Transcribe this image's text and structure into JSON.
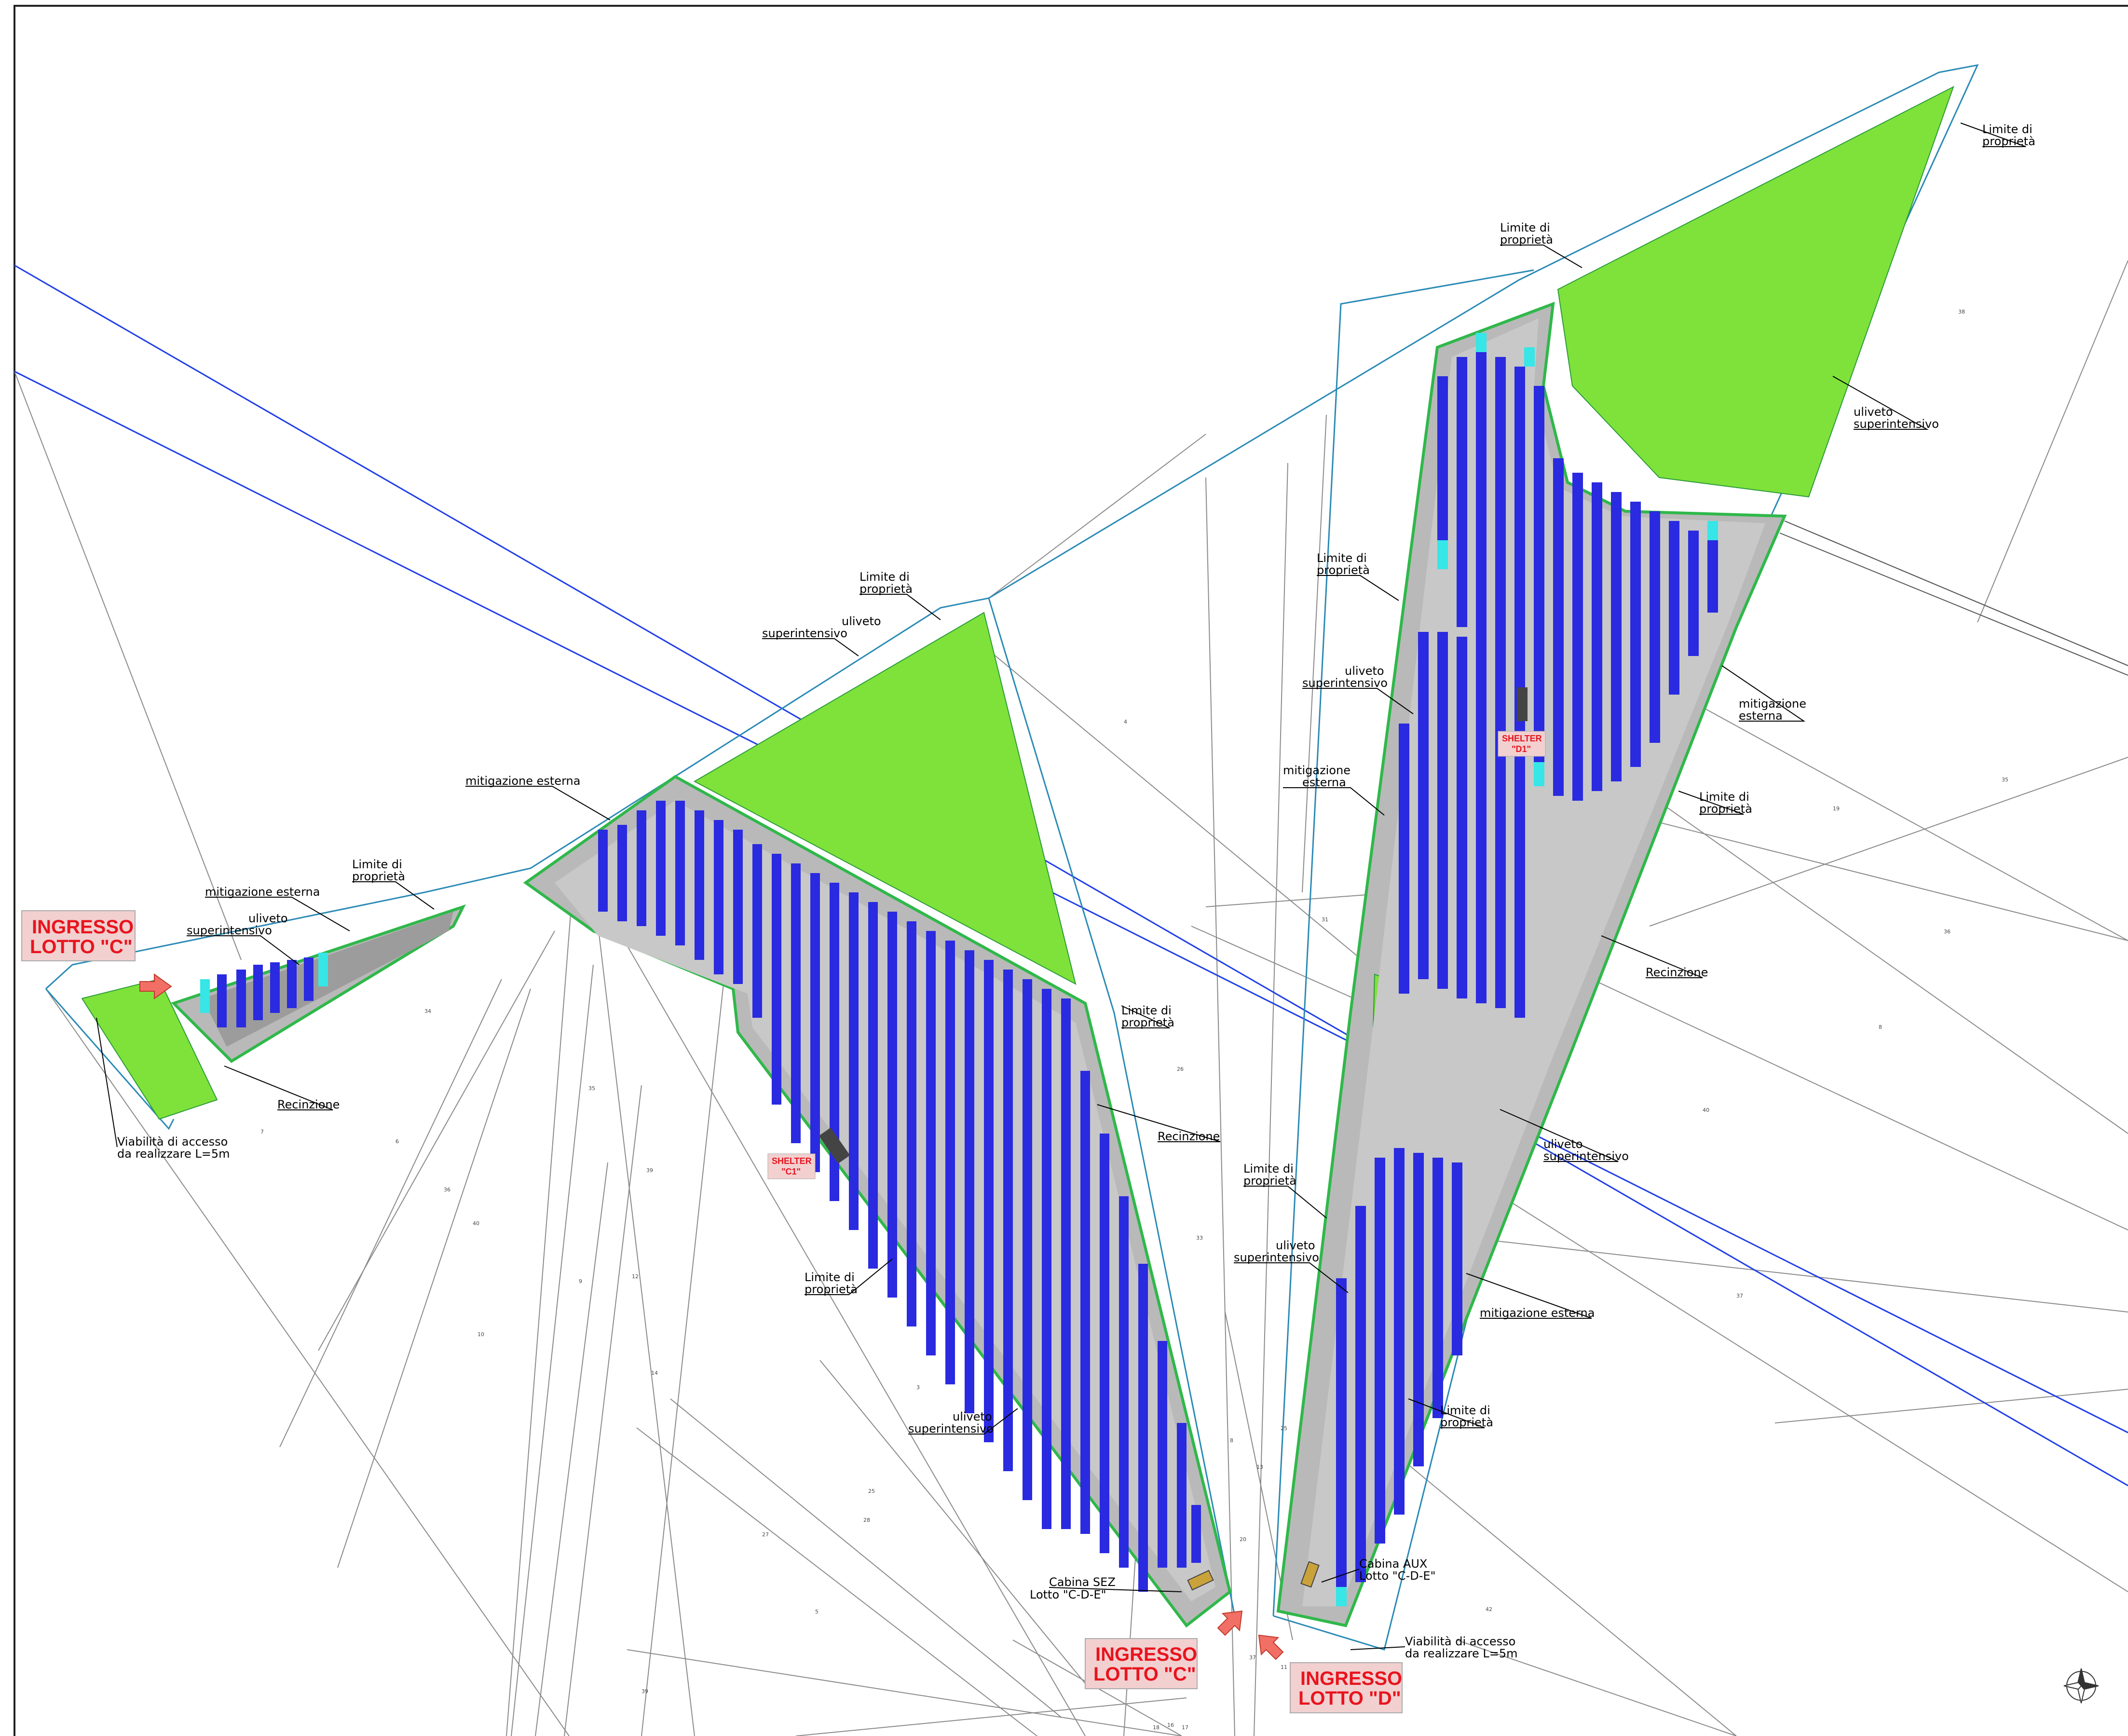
{
  "colors": {
    "solar_panel": "#2a2ae0",
    "solar_panel_light": "#37e6e6",
    "olive_grove": "#7ee23a",
    "mitigation": "#2fb84a",
    "road": "#b9b9b9",
    "property_limit": "#2a8ab5",
    "power_line": "#1f3ee8",
    "entrance_box": "#f2d0d0",
    "entrance_text": "#e8141e",
    "arrow": "#f26f66"
  },
  "labels": {
    "limite_proprieta": [
      "Limite di",
      "proprietà"
    ],
    "uliveto": [
      "uliveto",
      "superintensivo"
    ],
    "mitigazione": "mitigazione esterna",
    "mitigazione_split": [
      "mitigazione",
      "esterna"
    ],
    "recinzione": "Recinzione",
    "viabilita": [
      "Viabilità di accesso",
      "da realizzare L=5m"
    ],
    "cabina_sez": [
      "Cabina SEZ",
      "Lotto \"C-D-E\""
    ],
    "cabina_aux": [
      "Cabina AUX",
      "Lotto \"C-D-E\""
    ]
  },
  "entrances": {
    "lotto_c_west": [
      "INGRESSO",
      "LOTTO \"C\""
    ],
    "lotto_c_south": [
      "INGRESSO",
      "LOTTO \"C\""
    ],
    "lotto_d": [
      "INGRESSO",
      "LOTTO \"D\""
    ]
  },
  "shelters": {
    "c1": [
      "SHELTER",
      "\"C1\""
    ],
    "d1": [
      "SHELTER",
      "\"D1\""
    ]
  },
  "parcel_numbers": [
    "34",
    "7",
    "6",
    "35",
    "36",
    "40",
    "9",
    "12",
    "10",
    "39",
    "3",
    "5",
    "4",
    "26",
    "31",
    "33",
    "8",
    "13",
    "25",
    "37",
    "38",
    "35",
    "19",
    "36",
    "8",
    "40",
    "37",
    "42",
    "16",
    "17",
    "18",
    "20",
    "11",
    "14",
    "25",
    "27",
    "39",
    "28"
  ],
  "icons": {
    "north_arrow": "compass-rose-icon",
    "entrance_arrow": "red-arrow-icon"
  }
}
